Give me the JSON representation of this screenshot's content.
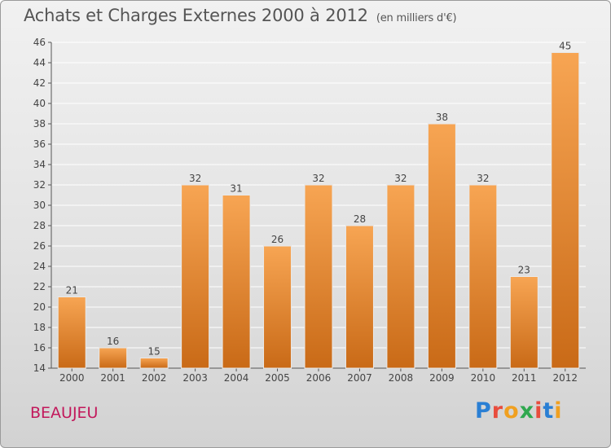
{
  "header": {
    "title": "Achats et Charges Externes 2000 à 2012",
    "unit": "(en milliers d'€)"
  },
  "footer": {
    "commune": "BEAUJEU",
    "logo_letters": [
      "P",
      "r",
      "o",
      "x",
      "i",
      "t",
      "i"
    ]
  },
  "colors": {
    "bar_top": "#f7a553",
    "bar_bottom": "#c96a17",
    "commune": "#c2185b",
    "logo": [
      "#2a7fd4",
      "#e84c3d",
      "#f0a020",
      "#2fa84f",
      "#e84c3d",
      "#2a7fd4",
      "#f0a020"
    ]
  },
  "chart_data": {
    "type": "bar",
    "title": "Achats et Charges Externes 2000 à 2012",
    "subtitle": "(en milliers d'€)",
    "xlabel": "",
    "ylabel": "",
    "categories": [
      "2000",
      "2001",
      "2002",
      "2003",
      "2004",
      "2005",
      "2006",
      "2007",
      "2008",
      "2009",
      "2010",
      "2011",
      "2012"
    ],
    "values": [
      21,
      16,
      15,
      32,
      31,
      26,
      32,
      28,
      32,
      38,
      32,
      23,
      45
    ],
    "ylim": [
      14,
      46
    ],
    "yticks": [
      14,
      16,
      18,
      20,
      22,
      24,
      26,
      28,
      30,
      32,
      34,
      36,
      38,
      40,
      42,
      44,
      46
    ],
    "grid": true,
    "legend": "none"
  }
}
